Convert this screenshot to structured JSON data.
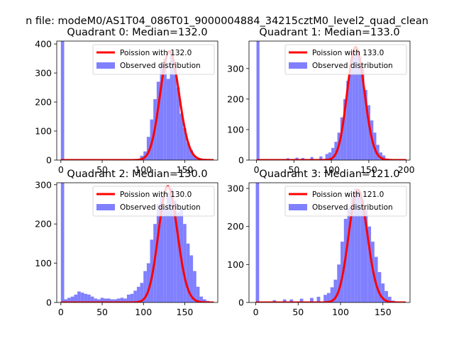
{
  "figure_title": "n file: modeM0/AS1T04_086T01_9000004884_34215cztM0_level2_quad_clean",
  "colors": {
    "hist": "#8080ff",
    "poisson": "#ff0000",
    "axis": "#000000",
    "background": "#ffffff"
  },
  "chart_data": [
    {
      "type": "bar",
      "title": "Quadrant 0: Median=132.0",
      "xlim": [
        -5,
        190
      ],
      "ylim": [
        0,
        410
      ],
      "xticks": [
        0,
        50,
        100,
        150
      ],
      "yticks": [
        0,
        100,
        200,
        300,
        400
      ],
      "bin_width": 4,
      "legend": [
        "Poission with 132.0",
        "Observed distribution"
      ],
      "legend_position": "upper right",
      "hist_x": [
        0,
        96,
        100,
        104,
        108,
        112,
        116,
        120,
        124,
        128,
        132,
        136,
        140,
        144,
        148,
        152,
        156,
        160,
        164,
        168
      ],
      "hist_y": [
        410,
        15,
        30,
        80,
        140,
        210,
        270,
        330,
        350,
        280,
        370,
        320,
        250,
        160,
        110,
        60,
        35,
        15,
        8,
        3
      ],
      "poisson": {
        "mean": 132.0,
        "peak": 375
      }
    },
    {
      "type": "bar",
      "title": "Quadrant 1: Median=133.0",
      "xlim": [
        -10,
        205
      ],
      "ylim": [
        0,
        390
      ],
      "xticks": [
        0,
        50,
        100,
        150,
        200
      ],
      "yticks": [
        0,
        100,
        200,
        300
      ],
      "bin_width": 4,
      "legend": [
        "Poission with 133.0",
        "Observed distribution"
      ],
      "legend_position": "upper right",
      "hist_x": [
        0,
        40,
        52,
        60,
        72,
        84,
        92,
        96,
        100,
        104,
        108,
        112,
        116,
        120,
        124,
        128,
        132,
        136,
        140,
        144,
        148,
        152,
        156,
        160,
        164,
        168,
        172
      ],
      "hist_y": [
        390,
        6,
        8,
        7,
        10,
        12,
        20,
        25,
        40,
        60,
        90,
        140,
        200,
        260,
        300,
        350,
        360,
        340,
        300,
        230,
        180,
        130,
        90,
        50,
        25,
        15,
        5
      ],
      "poisson": {
        "mean": 133.0,
        "peak": 370
      }
    },
    {
      "type": "bar",
      "title": "Quadrant 2: Median=130.0",
      "xlim": [
        -5,
        190
      ],
      "ylim": [
        0,
        305
      ],
      "xticks": [
        0,
        50,
        100,
        150
      ],
      "yticks": [
        0,
        100,
        200,
        300
      ],
      "bin_width": 4,
      "legend": [
        "Poission with 130.0",
        "Observed distribution"
      ],
      "legend_position": "upper right",
      "hist_x": [
        0,
        4,
        8,
        12,
        16,
        20,
        24,
        28,
        32,
        36,
        40,
        44,
        48,
        52,
        56,
        60,
        64,
        68,
        72,
        76,
        80,
        84,
        88,
        92,
        96,
        100,
        104,
        108,
        112,
        116,
        120,
        124,
        128,
        132,
        136,
        140,
        144,
        148,
        152,
        156,
        160,
        164,
        168,
        172,
        176
      ],
      "hist_y": [
        305,
        8,
        12,
        15,
        20,
        28,
        25,
        22,
        20,
        15,
        10,
        8,
        12,
        10,
        10,
        8,
        8,
        10,
        12,
        10,
        20,
        22,
        30,
        40,
        50,
        80,
        100,
        160,
        200,
        250,
        270,
        240,
        280,
        290,
        260,
        230,
        240,
        200,
        150,
        120,
        80,
        40,
        15,
        8,
        4
      ],
      "poisson": {
        "mean": 130.0,
        "peak": 296
      }
    },
    {
      "type": "bar",
      "title": "Quadrant 3: Median=121.0",
      "xlim": [
        -8,
        182
      ],
      "ylim": [
        0,
        315
      ],
      "xticks": [
        0,
        50,
        100,
        150
      ],
      "yticks": [
        0,
        100,
        200,
        300
      ],
      "bin_width": 4,
      "legend": [
        "Poission with 121.0",
        "Observed distribution"
      ],
      "legend_position": "upper right",
      "hist_x": [
        0,
        20,
        32,
        40,
        52,
        64,
        72,
        80,
        84,
        88,
        92,
        96,
        100,
        104,
        108,
        112,
        116,
        120,
        124,
        128,
        132,
        136,
        140,
        144,
        148,
        152,
        156,
        160
      ],
      "hist_y": [
        315,
        6,
        8,
        8,
        10,
        12,
        15,
        20,
        25,
        40,
        60,
        100,
        160,
        220,
        250,
        280,
        300,
        290,
        270,
        250,
        200,
        160,
        120,
        80,
        50,
        30,
        15,
        5
      ],
      "poisson": {
        "mean": 121.0,
        "peak": 296
      }
    }
  ]
}
